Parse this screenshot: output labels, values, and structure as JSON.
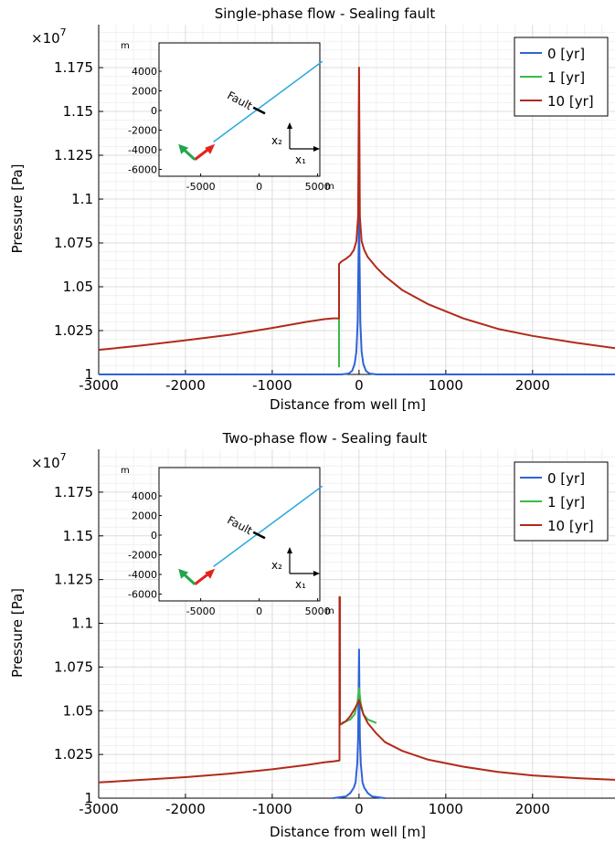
{
  "chart_data": [
    {
      "type": "line",
      "title": "Single-phase flow - Sealing fault",
      "xlabel": "Distance from well [m]",
      "ylabel": "Pressure [Pa]",
      "y_multiplier": "×10",
      "y_multiplier_exp": "7",
      "xlim": [
        -3000,
        2950
      ],
      "ylim": [
        1.0,
        1.1995
      ],
      "xticks": [
        "-3000",
        "-2000",
        "-1000",
        "0",
        "1000",
        "2000"
      ],
      "xtick_values": [
        -3000,
        -2000,
        -1000,
        0,
        1000,
        2000
      ],
      "yticks": [
        "1",
        "1.025",
        "1.05",
        "1.075",
        "1.1",
        "1.125",
        "1.15",
        "1.175"
      ],
      "ytick_values": [
        1.0,
        1.025,
        1.05,
        1.075,
        1.1,
        1.125,
        1.15,
        1.175
      ],
      "grid": true,
      "legend_position": "top-right",
      "series": [
        {
          "name": "0 [yr]",
          "color": "#2d63d8",
          "x": [
            -3000,
            -1000,
            -200,
            -120,
            -80,
            -50,
            -30,
            -15,
            0,
            15,
            30,
            50,
            80,
            120,
            200,
            2950
          ],
          "y": [
            1.0,
            1.0,
            1.0,
            1.0005,
            1.002,
            1.006,
            1.013,
            1.03,
            1.09,
            1.03,
            1.013,
            1.006,
            1.002,
            1.0005,
            1.0,
            1.0
          ]
        },
        {
          "name": "1 [yr]",
          "color": "#3cb94a",
          "x": [
            -230,
            -230,
            -225
          ],
          "y": [
            1.004,
            1.033,
            1.033
          ]
        },
        {
          "name": "10 [yr]",
          "color": "#b22a1a",
          "x": [
            -3000,
            -2500,
            -2000,
            -1500,
            -1000,
            -600,
            -400,
            -300,
            -230,
            -230,
            -200,
            -150,
            -100,
            -60,
            -30,
            -10,
            0,
            10,
            30,
            60,
            100,
            200,
            300,
            500,
            800,
            1200,
            1600,
            2000,
            2500,
            2950
          ],
          "y": [
            1.014,
            1.0165,
            1.0195,
            1.0225,
            1.0265,
            1.03,
            1.0315,
            1.032,
            1.032,
            1.063,
            1.0645,
            1.066,
            1.068,
            1.071,
            1.076,
            1.09,
            1.175,
            1.09,
            1.076,
            1.071,
            1.067,
            1.061,
            1.056,
            1.048,
            1.04,
            1.032,
            1.026,
            1.022,
            1.018,
            1.015
          ]
        }
      ],
      "inset": {
        "xticks": [
          "-5000",
          "0",
          "5000"
        ],
        "xtick_values": [
          -5000,
          0,
          5000
        ],
        "yticks": [
          "4000",
          "2000",
          "0",
          "-2000",
          "-4000",
          "-6000"
        ],
        "ytick_values": [
          4000,
          2000,
          0,
          -2000,
          -4000,
          -6000
        ],
        "unit_label": "m",
        "fault_label": "Fault",
        "axis_x_label": "x₁",
        "axis_y_label": "x₂"
      }
    },
    {
      "type": "line",
      "title": "Two-phase flow - Sealing fault",
      "xlabel": "Distance from well [m]",
      "ylabel": "Pressure [Pa]",
      "y_multiplier": "×10",
      "y_multiplier_exp": "7",
      "xlim": [
        -3000,
        2950
      ],
      "ylim": [
        1.0,
        1.1995
      ],
      "xticks": [
        "-3000",
        "-2000",
        "-1000",
        "0",
        "1000",
        "2000"
      ],
      "xtick_values": [
        -3000,
        -2000,
        -1000,
        0,
        1000,
        2000
      ],
      "yticks": [
        "1",
        "1.025",
        "1.05",
        "1.075",
        "1.1",
        "1.125",
        "1.15",
        "1.175"
      ],
      "ytick_values": [
        1.0,
        1.025,
        1.05,
        1.075,
        1.1,
        1.125,
        1.15,
        1.175
      ],
      "grid": true,
      "legend_position": "top-right",
      "series": [
        {
          "name": "0 [yr]",
          "color": "#2d63d8",
          "x": [
            -300,
            -150,
            -100,
            -60,
            -40,
            -20,
            -10,
            0,
            10,
            20,
            40,
            60,
            100,
            150,
            300
          ],
          "y": [
            1.0,
            1.001,
            1.003,
            1.006,
            1.009,
            1.02,
            1.035,
            1.085,
            1.035,
            1.02,
            1.009,
            1.006,
            1.003,
            1.001,
            1.0
          ]
        },
        {
          "name": "1 [yr]",
          "color": "#3cb94a",
          "x": [
            -200,
            -100,
            -50,
            -20,
            0,
            20,
            50,
            100,
            200
          ],
          "y": [
            1.043,
            1.045,
            1.048,
            1.054,
            1.063,
            1.054,
            1.048,
            1.045,
            1.043
          ]
        },
        {
          "name": "10 [yr]",
          "color": "#b22a1a",
          "x": [
            -3000,
            -2500,
            -2000,
            -1500,
            -1000,
            -600,
            -400,
            -300,
            -225,
            -225,
            -220,
            -220,
            -200,
            -150,
            -100,
            -50,
            0,
            50,
            100,
            200,
            300,
            500,
            800,
            1200,
            1600,
            2000,
            2500,
            2950
          ],
          "y": [
            1.009,
            1.0105,
            1.012,
            1.014,
            1.0165,
            1.019,
            1.0205,
            1.021,
            1.0215,
            1.115,
            1.115,
            1.042,
            1.0425,
            1.044,
            1.047,
            1.051,
            1.056,
            1.048,
            1.043,
            1.037,
            1.032,
            1.027,
            1.022,
            1.018,
            1.015,
            1.013,
            1.0115,
            1.0105
          ]
        }
      ],
      "inset": {
        "xticks": [
          "-5000",
          "0",
          "5000"
        ],
        "xtick_values": [
          -5000,
          0,
          5000
        ],
        "yticks": [
          "4000",
          "2000",
          "0",
          "-2000",
          "-4000",
          "-6000"
        ],
        "ytick_values": [
          4000,
          2000,
          0,
          -2000,
          -4000,
          -6000
        ],
        "unit_label": "m",
        "fault_label": "Fault",
        "axis_x_label": "x₁",
        "axis_y_label": "x₂"
      }
    }
  ]
}
